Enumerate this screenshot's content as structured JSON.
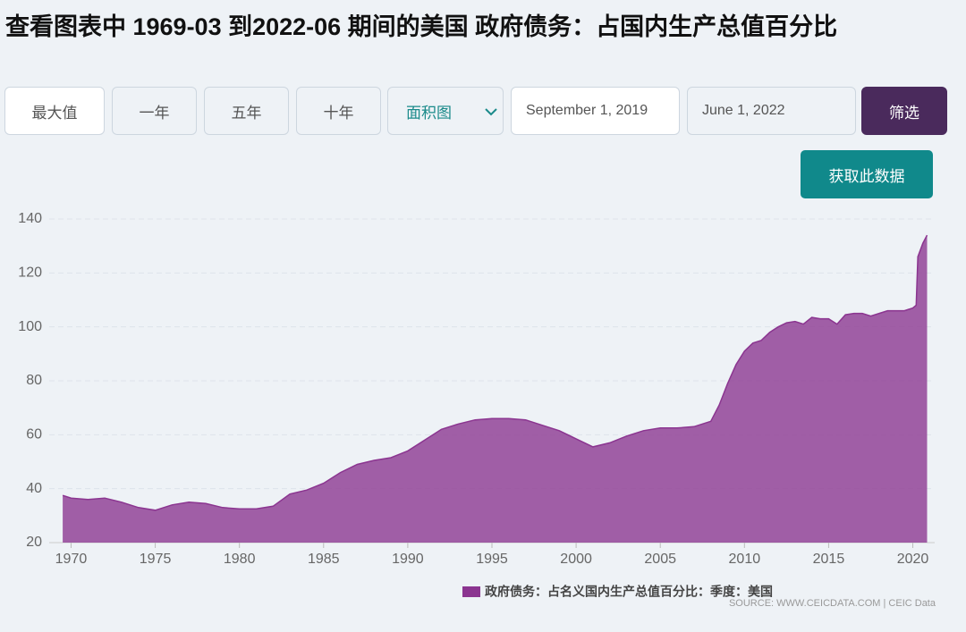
{
  "header": {
    "title": "查看图表中 1969-03 到2022-06 期间的美国 政府债务：占国内生产总值百分比"
  },
  "controls": {
    "ranges": [
      "最大值",
      "一年",
      "五年",
      "十年"
    ],
    "chart_type": "面积图",
    "start_date": "September 1, 2019",
    "end_date": "June 1, 2022",
    "filter": "筛选",
    "get_data": "获取此数据"
  },
  "chart_data": {
    "type": "area",
    "x": [
      1969.5,
      1970,
      1971,
      1972,
      1973,
      1974,
      1975,
      1976,
      1977,
      1978,
      1979,
      1980,
      1981,
      1982,
      1983,
      1984,
      1985,
      1986,
      1987,
      1988,
      1989,
      1990,
      1991,
      1992,
      1993,
      1994,
      1995,
      1996,
      1997,
      1998,
      1999,
      2000,
      2001,
      2002,
      2003,
      2004,
      2005,
      2006,
      2007,
      2008,
      2008.5,
      2009,
      2009.5,
      2010,
      2010.5,
      2011,
      2011.5,
      2012,
      2012.5,
      2013,
      2013.5,
      2014,
      2014.5,
      2015,
      2015.5,
      2016,
      2016.5,
      2017,
      2017.5,
      2018,
      2018.5,
      2019,
      2019.5,
      2020,
      2020.2,
      2020.3,
      2020.6,
      2020.85
    ],
    "series": [
      {
        "name": "政府债务：占名义国内生产总值百分比：季度：美国",
        "color": "#8b3590",
        "values": [
          37.5,
          36.5,
          36,
          36.5,
          35,
          33,
          32,
          34,
          35,
          34.5,
          33,
          32.5,
          32.5,
          33.5,
          38,
          39.5,
          42,
          46,
          49,
          50.5,
          51.5,
          54,
          58,
          62,
          64,
          65.5,
          66,
          66,
          65.5,
          63.5,
          61.5,
          58.5,
          55.5,
          57,
          59.5,
          61.5,
          62.5,
          62.5,
          63,
          65,
          71,
          79,
          86,
          91,
          94,
          95,
          98,
          100,
          101.5,
          102,
          101,
          103.5,
          103,
          103,
          101,
          104.5,
          105,
          105,
          104,
          105,
          106,
          106,
          106,
          107,
          108,
          126,
          131,
          134
        ]
      }
    ],
    "xlim": [
      1968.7,
      2021.3
    ],
    "xticks": [
      1970,
      1975,
      1980,
      1985,
      1990,
      1995,
      2000,
      2005,
      2010,
      2015,
      2020
    ],
    "ylim": [
      20,
      140
    ],
    "yticks": [
      20,
      40,
      60,
      80,
      100,
      120,
      140
    ],
    "grid": true,
    "source": "SOURCE: WWW.CEICDATA.COM | CEIC Data"
  }
}
